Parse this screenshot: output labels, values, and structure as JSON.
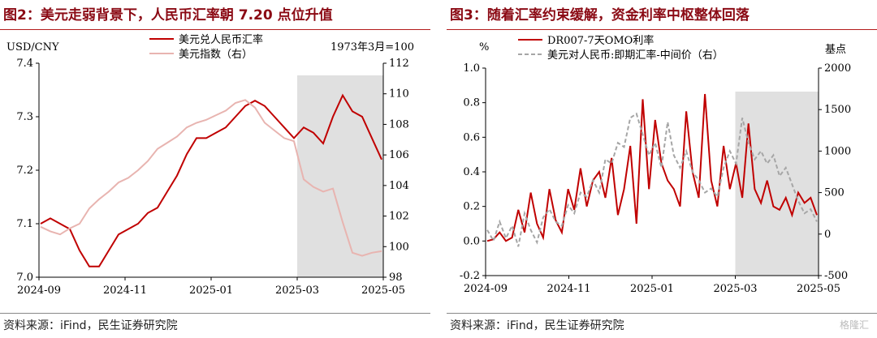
{
  "left": {
    "title": "图2：美元走弱背景下，人民币汇率朝 7.20 点位升值",
    "source": "资料来源：iFind，民生证券研究院",
    "chart_data": {
      "type": "line",
      "left_axis_label": "USD/CNY",
      "right_axis_note": "1973年3月=100",
      "left_ylim": [
        7.0,
        7.4
      ],
      "left_ticks": [
        "7.0",
        "7.1",
        "7.2",
        "7.3",
        "7.4"
      ],
      "right_ylim": [
        98,
        112
      ],
      "right_ticks": [
        "98",
        "100",
        "102",
        "104",
        "106",
        "108",
        "110",
        "112"
      ],
      "x_ticks": [
        "2024-09",
        "2024-11",
        "2025-01",
        "2025-03",
        "2025-05"
      ],
      "shaded_range": [
        "2025-03",
        "2025-05"
      ],
      "series": [
        {
          "name": "美元兑人民币汇率",
          "axis": "left",
          "color": "#c00000",
          "values": [
            7.1,
            7.11,
            7.1,
            7.09,
            7.05,
            7.02,
            7.02,
            7.05,
            7.08,
            7.09,
            7.1,
            7.12,
            7.13,
            7.16,
            7.19,
            7.23,
            7.26,
            7.26,
            7.27,
            7.28,
            7.3,
            7.32,
            7.33,
            7.32,
            7.3,
            7.28,
            7.26,
            7.28,
            7.27,
            7.25,
            7.3,
            7.34,
            7.31,
            7.3,
            7.26,
            7.22
          ]
        },
        {
          "name": "美元指数（右）",
          "axis": "right",
          "color": "#e8b4b0",
          "values": [
            101.3,
            101.0,
            100.8,
            101.2,
            101.5,
            102.5,
            103.1,
            103.6,
            104.2,
            104.5,
            105.0,
            105.6,
            106.4,
            106.8,
            107.2,
            107.8,
            108.1,
            108.3,
            108.6,
            108.9,
            109.4,
            109.6,
            109.1,
            108.1,
            107.6,
            107.1,
            106.9,
            104.4,
            103.9,
            103.6,
            103.8,
            101.6,
            99.6,
            99.4,
            99.6,
            99.7
          ]
        }
      ]
    }
  },
  "right": {
    "title": "图3：随着汇率约束缓解，资金利率中枢整体回落",
    "source": "资料来源：iFind，民生证券研究院",
    "chart_data": {
      "type": "line",
      "left_axis_label": "%",
      "right_axis_label": "基点",
      "left_ylim": [
        -0.2,
        1.0
      ],
      "left_ticks": [
        "-0.2",
        "0.0",
        "0.2",
        "0.4",
        "0.6",
        "0.8",
        "1.0"
      ],
      "right_ylim": [
        -500,
        2000
      ],
      "right_ticks": [
        "-500",
        "0",
        "500",
        "1000",
        "1500",
        "2000"
      ],
      "x_ticks": [
        "2024-09",
        "2024-11",
        "2025-01",
        "2025-03",
        "2025-05"
      ],
      "shaded_range": [
        "2025-03",
        "2025-05"
      ],
      "series": [
        {
          "name": "DR007-7天OMO利率",
          "axis": "left",
          "color": "#c00000",
          "values": [
            0.0,
            0.01,
            0.05,
            0.0,
            0.02,
            0.18,
            0.05,
            0.28,
            0.1,
            0.02,
            0.3,
            0.12,
            0.05,
            0.3,
            0.18,
            0.42,
            0.2,
            0.35,
            0.4,
            0.25,
            0.48,
            0.15,
            0.3,
            0.55,
            0.1,
            0.82,
            0.3,
            0.7,
            0.45,
            0.35,
            0.3,
            0.2,
            0.75,
            0.4,
            0.25,
            0.85,
            0.35,
            0.2,
            0.55,
            0.3,
            0.45,
            0.25,
            0.68,
            0.3,
            0.22,
            0.35,
            0.2,
            0.18,
            0.25,
            0.15,
            0.28,
            0.22,
            0.25,
            0.15
          ]
        },
        {
          "name": "美元对人民币:即期汇率-中间价（右）",
          "axis": "right",
          "color": "#a6a6a6",
          "dashed": true,
          "values": [
            50,
            -80,
            150,
            -50,
            100,
            -150,
            250,
            50,
            -100,
            200,
            300,
            150,
            100,
            350,
            250,
            500,
            450,
            650,
            500,
            900,
            850,
            1100,
            1050,
            1400,
            1450,
            1200,
            950,
            1100,
            800,
            1350,
            950,
            800,
            1000,
            750,
            650,
            500,
            550,
            450,
            800,
            1000,
            850,
            1400,
            1100,
            900,
            1000,
            850,
            950,
            700,
            800,
            600,
            400,
            250,
            300,
            150
          ]
        }
      ]
    }
  },
  "watermark": "格隆汇"
}
